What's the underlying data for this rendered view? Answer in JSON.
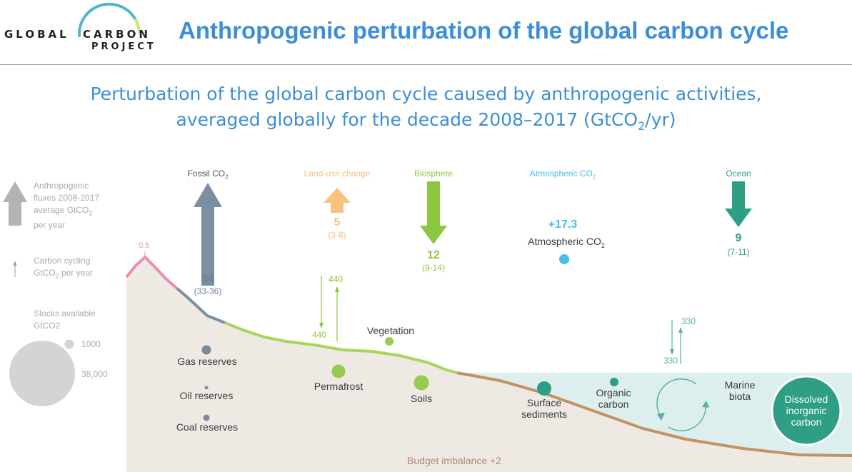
{
  "logo": {
    "word1": "GLOBAL",
    "word2": "CARBON",
    "word3": "PROJECT",
    "ring_color": "#4fb7c7"
  },
  "header": {
    "title": "Anthropogenic perturbation of the global carbon cycle"
  },
  "subtitle": {
    "line1": "Perturbation of the global carbon cycle caused by anthropogenic activities,",
    "line2_pre": "averaged globally for the decade 2008–2017 (GtCO",
    "line2_sub": "2",
    "line2_post": "/yr)"
  },
  "legend": {
    "flux_line1": "Anthropogenic",
    "flux_line2": "fluxes 2008-2017",
    "flux_line3_pre": "average GtCO",
    "flux_line3_sub": "2",
    "flux_line4": "per year",
    "cycling_line1": "Carbon cycling",
    "cycling_line2_pre": "GtCO",
    "cycling_line2_sub": "2",
    "cycling_line2_post": " per year",
    "stocks_line1": "Stocks available",
    "stocks_line2": "GtCO2",
    "stock_small": "1000",
    "stock_large": "38,000"
  },
  "fluxes": {
    "fossil": {
      "label_pre": "Fossil CO",
      "label_sub": "2",
      "value": "34",
      "range": "(33-36)",
      "color": "#7b8fa1",
      "direction": "up"
    },
    "land_use": {
      "label": "Land-use change",
      "value": "5",
      "range": "(3-8)",
      "color": "#f6c27d",
      "direction": "up"
    },
    "biosphere": {
      "label": "Biosphere",
      "value": "12",
      "range": "(9-14)",
      "color": "#8dc63f",
      "direction": "down"
    },
    "atmospheric": {
      "label_pre": "Atmospheric CO",
      "label_sub": "2",
      "value": "+17.3",
      "name_pre": "Atmospheric CO",
      "name_sub": "2",
      "color": "#45c1e8"
    },
    "ocean": {
      "label": "Ocean",
      "value": "9",
      "range": "(7-11)",
      "color": "#2e9e85",
      "direction": "down"
    }
  },
  "volcanic": {
    "value": "0.5",
    "color": "#e98fb0"
  },
  "cycling": {
    "land_down": "440",
    "land_up": "440",
    "land_color": "#8dc63f",
    "ocean_down": "330",
    "ocean_up": "330",
    "ocean_color": "#55b2a0"
  },
  "stocks": {
    "gas": "Gas reserves",
    "oil": "Oil reserves",
    "coal": "Coal reserves",
    "vegetation": "Vegetation",
    "permafrost": "Permafrost",
    "soils": "Soils",
    "surface_sediments_1": "Surface",
    "surface_sediments_2": "sediments",
    "organic_carbon_1": "Organic",
    "organic_carbon_2": "carbon",
    "marine_biota_1": "Marine",
    "marine_biota_2": "biota",
    "dic_1": "Dissolved",
    "dic_2": "inorganic",
    "dic_3": "carbon"
  },
  "budget_imbalance": "Budget imbalance +2",
  "colors": {
    "land": "#efe9e4",
    "ocean": "#dcefee",
    "sediment": "#b9814a",
    "dic": "#2e9e85",
    "stock_dot": "#7b8a9b"
  }
}
